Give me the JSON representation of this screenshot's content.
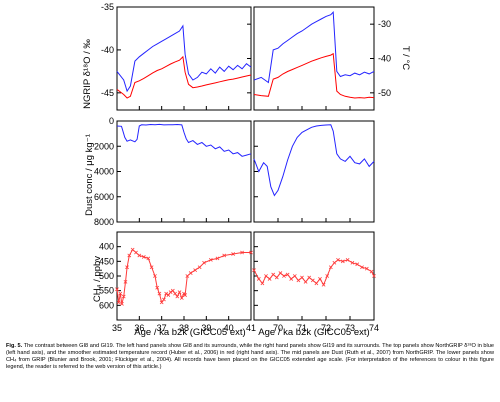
{
  "colors": {
    "delta18O": "#2424ff",
    "temperature": "#ff0000",
    "dust": "#2424ff",
    "ch4": "#ff3a3a",
    "axes": "#000000"
  },
  "axis_labels": {
    "d18o": "NGRIP δ¹⁸O / ‰",
    "temp": "T / °C",
    "dust": "Dust conc / μg kg⁻¹",
    "ch4": "CH₄ / ppbv",
    "xlabel_left": "Age / ka b2k (GICC05 ext)",
    "xlabel_right": "Age / ka b2k (GICC05 ext)"
  },
  "caption": {
    "label": "Fig. 5.",
    "text": "The contrast between GI8 and GI19. The left hand panels show GI8 and its surrounds, while the right hand panels show GI19 and its surrounds. The top panels show NorthGRIP δ¹⁸O in blue (left hand axis), and the smoother estimated temperature record (Huber et al., 2006) in red (right hand axis). The mid panels are Dust (Ruth et al., 2007) from NorthGRIP. The lower panels show CH₄ from GRIP (Blunier and Brook, 2001; Flückiger et al., 2004). All records have been placed on the GICC05 extended age scale. (For interpretation of the references to colour in this figure legend, the reader is referred to the web version of this article.)"
  },
  "chart_data": [
    {
      "type": "line",
      "panel": "left-top",
      "xlim": [
        35,
        41
      ],
      "ylim": [
        -35,
        -47
      ],
      "y2lim": [
        -25,
        -55
      ],
      "ylabel": "NGRIP δ¹⁸O / ‰",
      "y2label": "T / °C",
      "yticks": [
        -35,
        -40,
        -45
      ],
      "y2ticks": [
        -30,
        -40,
        -50
      ],
      "series": [
        {
          "axis": "y",
          "color": "#2424ff",
          "x": [
            35.0,
            35.3,
            35.45,
            35.6,
            35.8,
            36.0,
            36.2,
            36.4,
            36.6,
            36.8,
            37.0,
            37.2,
            37.4,
            37.6,
            37.8,
            37.95,
            38.05,
            38.2,
            38.4,
            38.6,
            38.8,
            39.0,
            39.2,
            39.4,
            39.6,
            39.8,
            40.0,
            40.2,
            40.4,
            40.6,
            40.8,
            41.0
          ],
          "y": [
            -42.5,
            -43.5,
            -44.8,
            -44.2,
            -41.3,
            -40.8,
            -40.4,
            -40.0,
            -39.6,
            -39.3,
            -39.0,
            -38.7,
            -38.4,
            -38.1,
            -37.8,
            -37.2,
            -40.5,
            -42.8,
            -43.5,
            -43.2,
            -42.6,
            -42.8,
            -42.2,
            -42.7,
            -42.0,
            -42.5,
            -41.9,
            -42.3,
            -41.8,
            -42.2,
            -41.6,
            -42.0
          ]
        },
        {
          "axis": "y2",
          "color": "#ff0000",
          "x": [
            35.0,
            35.3,
            35.45,
            35.6,
            35.8,
            36.0,
            36.2,
            36.4,
            36.6,
            36.8,
            37.0,
            37.2,
            37.4,
            37.6,
            37.8,
            37.95,
            38.05,
            38.2,
            38.4,
            38.6,
            38.8,
            39.0,
            39.2,
            39.4,
            39.6,
            39.8,
            40.0,
            40.2,
            40.4,
            40.6,
            40.8,
            41.0
          ],
          "y": [
            -49.0,
            -50.5,
            -51.5,
            -51.0,
            -47.0,
            -46.5,
            -45.8,
            -45.0,
            -44.2,
            -43.5,
            -43.0,
            -42.3,
            -41.6,
            -41.0,
            -40.5,
            -39.5,
            -44.0,
            -47.5,
            -48.5,
            -48.3,
            -48.0,
            -47.7,
            -47.4,
            -47.1,
            -46.8,
            -46.5,
            -46.2,
            -46.0,
            -45.7,
            -45.4,
            -45.1,
            -44.8
          ]
        }
      ]
    },
    {
      "type": "line",
      "panel": "right-top",
      "xlim": [
        69,
        74
      ],
      "ylim": [
        -35,
        -47
      ],
      "y2lim": [
        -25,
        -55
      ],
      "y2ticks": [
        -30,
        -40,
        -50
      ],
      "series": [
        {
          "axis": "y",
          "color": "#2424ff",
          "x": [
            69.0,
            69.3,
            69.6,
            69.8,
            70.0,
            70.2,
            70.4,
            70.6,
            70.8,
            71.0,
            71.2,
            71.4,
            71.6,
            71.8,
            72.0,
            72.2,
            72.3,
            72.45,
            72.6,
            72.8,
            73.0,
            73.2,
            73.4,
            73.6,
            73.8,
            74.0
          ],
          "y": [
            -43.5,
            -43.2,
            -43.8,
            -40.0,
            -39.8,
            -39.3,
            -38.9,
            -38.5,
            -38.1,
            -37.8,
            -37.4,
            -37.0,
            -36.7,
            -36.4,
            -36.1,
            -35.9,
            -35.6,
            -42.5,
            -43.1,
            -42.9,
            -43.0,
            -42.7,
            -42.9,
            -42.6,
            -42.8,
            -42.5
          ]
        },
        {
          "axis": "y2",
          "color": "#ff0000",
          "x": [
            69.0,
            69.3,
            69.6,
            69.8,
            70.0,
            70.2,
            70.4,
            70.6,
            70.8,
            71.0,
            71.2,
            71.4,
            71.6,
            71.8,
            72.0,
            72.2,
            72.3,
            72.45,
            72.6,
            72.8,
            73.0,
            73.2,
            73.4,
            73.6,
            73.8,
            74.0
          ],
          "y": [
            -50.5,
            -50.8,
            -51.0,
            -46.0,
            -45.5,
            -44.5,
            -43.8,
            -43.2,
            -42.6,
            -42.0,
            -41.4,
            -40.8,
            -40.3,
            -39.8,
            -39.4,
            -39.0,
            -38.6,
            -49.5,
            -50.5,
            -51.0,
            -51.3,
            -51.5,
            -51.4,
            -51.5,
            -51.3,
            -51.4
          ]
        }
      ]
    },
    {
      "type": "line",
      "panel": "left-mid",
      "xlim": [
        35,
        41
      ],
      "ylim": [
        0,
        8000
      ],
      "ylabel": "Dust conc / μg kg⁻¹",
      "yticks": [
        0,
        2000,
        4000,
        6000,
        8000
      ],
      "series": [
        {
          "color": "#2424ff",
          "x": [
            35.0,
            35.2,
            35.35,
            35.45,
            35.6,
            35.8,
            35.9,
            36.0,
            36.1,
            36.3,
            36.5,
            36.7,
            36.9,
            37.1,
            37.3,
            37.5,
            37.7,
            37.9,
            38.0,
            38.1,
            38.2,
            38.4,
            38.6,
            38.8,
            39.0,
            39.2,
            39.4,
            39.6,
            39.8,
            40.0,
            40.2,
            40.4,
            40.6,
            40.8,
            41.0
          ],
          "y": [
            400,
            420,
            1300,
            1600,
            1500,
            1650,
            1450,
            400,
            300,
            320,
            280,
            300,
            270,
            310,
            290,
            300,
            280,
            310,
            900,
            1400,
            1700,
            1550,
            1850,
            1700,
            2000,
            1900,
            2200,
            2050,
            2400,
            2300,
            2600,
            2500,
            2800,
            2700,
            2600
          ]
        }
      ]
    },
    {
      "type": "line",
      "panel": "right-mid",
      "xlim": [
        69,
        74
      ],
      "ylim": [
        0,
        8000
      ],
      "yticks": [
        0,
        2000,
        4000,
        6000,
        8000
      ],
      "series": [
        {
          "color": "#2424ff",
          "x": [
            69.0,
            69.2,
            69.4,
            69.55,
            69.7,
            69.85,
            70.0,
            70.2,
            70.4,
            70.6,
            70.8,
            71.0,
            71.2,
            71.4,
            71.6,
            71.8,
            72.0,
            72.2,
            72.3,
            72.45,
            72.6,
            72.8,
            73.0,
            73.2,
            73.4,
            73.6,
            73.8,
            74.0
          ],
          "y": [
            3000,
            4000,
            3300,
            3600,
            5200,
            5900,
            5500,
            4400,
            3100,
            2000,
            1300,
            900,
            700,
            500,
            400,
            350,
            320,
            300,
            800,
            2600,
            3000,
            3200,
            2800,
            3300,
            3400,
            3000,
            3600,
            3200
          ]
        }
      ]
    },
    {
      "type": "line",
      "panel": "left-bottom",
      "xlim": [
        35,
        41
      ],
      "ylim": [
        350,
        650
      ],
      "ylabel": "CH₄ / ppbv",
      "xlabel": "Age / ka b2k (GICC05 ext)",
      "yticks": [
        400,
        450,
        500,
        550,
        600
      ],
      "xticks": [
        35,
        36,
        37,
        38,
        39,
        40,
        41
      ],
      "series": [
        {
          "color": "#ff3a3a",
          "x": [
            35.0,
            35.08,
            35.15,
            35.22,
            35.3,
            35.38,
            35.45,
            35.55,
            35.7,
            35.85,
            36.0,
            36.2,
            36.4,
            36.55,
            36.7,
            36.8,
            36.9,
            37.0,
            37.1,
            37.2,
            37.3,
            37.4,
            37.5,
            37.6,
            37.7,
            37.8,
            37.9,
            38.0,
            38.05,
            38.15,
            38.3,
            38.5,
            38.7,
            38.9,
            39.2,
            39.5,
            39.8,
            40.2,
            40.6,
            41.0
          ],
          "y": [
            545,
            590,
            560,
            595,
            570,
            520,
            470,
            430,
            410,
            420,
            430,
            435,
            440,
            470,
            500,
            540,
            560,
            590,
            580,
            560,
            565,
            555,
            550,
            560,
            570,
            555,
            575,
            560,
            565,
            500,
            490,
            480,
            470,
            455,
            445,
            440,
            430,
            425,
            420,
            420
          ]
        }
      ]
    },
    {
      "type": "line",
      "panel": "right-bottom",
      "xlim": [
        69,
        74
      ],
      "ylim": [
        350,
        650
      ],
      "xlabel": "Age / ka b2k (GICC05 ext)",
      "yticks": [
        400,
        450,
        500,
        550,
        600
      ],
      "xticks": [
        70,
        71,
        72,
        73,
        74
      ],
      "series": [
        {
          "color": "#ff3a3a",
          "x": [
            69.0,
            69.2,
            69.35,
            69.5,
            69.65,
            69.8,
            69.95,
            70.1,
            70.25,
            70.4,
            70.55,
            70.7,
            70.85,
            71.0,
            71.15,
            71.3,
            71.45,
            71.6,
            71.75,
            71.9,
            72.05,
            72.2,
            72.35,
            72.5,
            72.7,
            72.9,
            73.1,
            73.3,
            73.5,
            73.7,
            73.9,
            74.0
          ],
          "y": [
            480,
            510,
            525,
            500,
            510,
            495,
            505,
            490,
            500,
            495,
            510,
            500,
            515,
            505,
            520,
            505,
            515,
            525,
            510,
            530,
            500,
            470,
            455,
            445,
            450,
            445,
            455,
            460,
            470,
            475,
            485,
            500
          ]
        }
      ]
    }
  ]
}
